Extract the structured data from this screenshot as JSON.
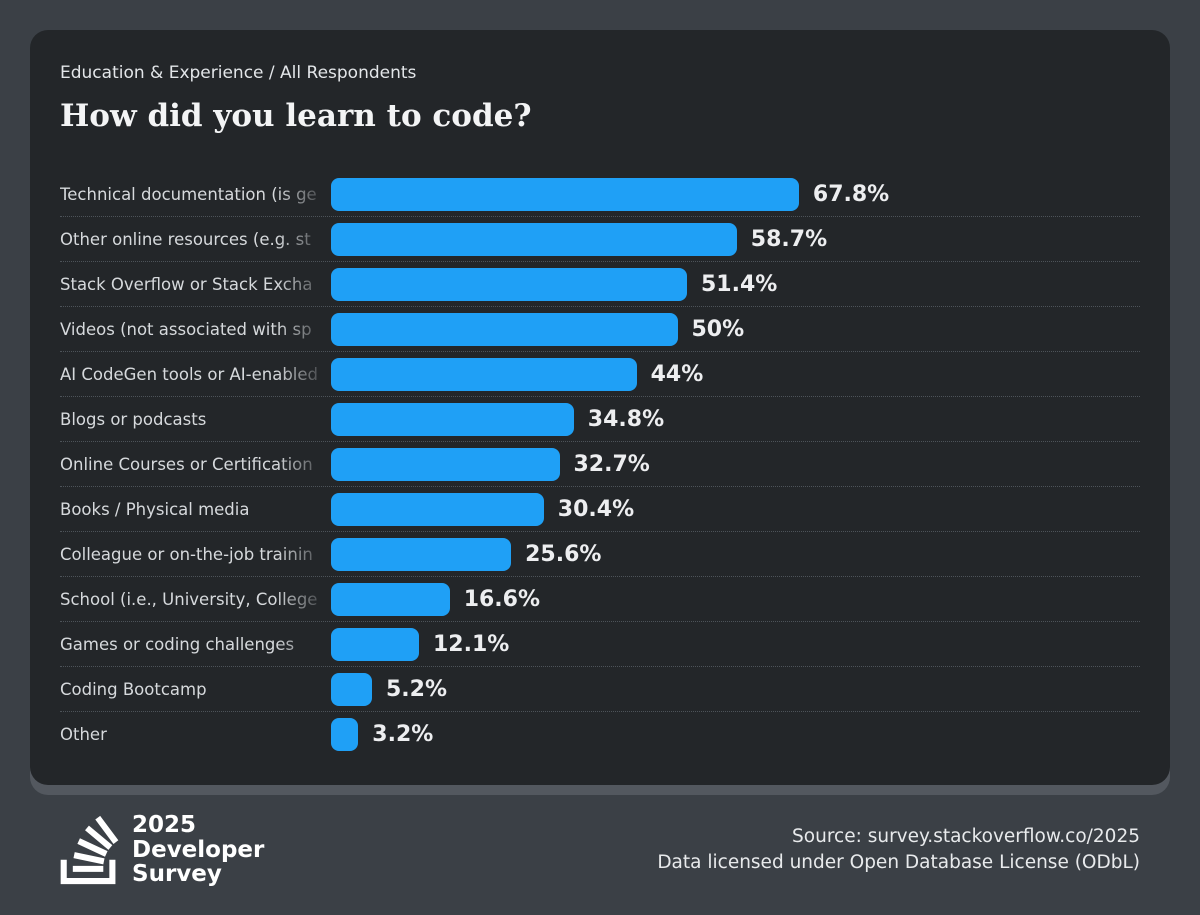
{
  "header": {
    "breadcrumb": "Education & Experience / All Respondents",
    "title": "How did you learn to code?"
  },
  "chart_data": {
    "type": "bar",
    "orientation": "horizontal",
    "title": "How did you learn to code?",
    "unit": "%",
    "xlim": [
      0,
      70
    ],
    "grid": "dotted row separators",
    "legend": "none",
    "bar_color": "#1fa0f6",
    "categories": [
      "Technical documentation (is ge",
      "Other online resources (e.g. st",
      "Stack Overflow or Stack Excha",
      "Videos (not associated with sp",
      "AI CodeGen tools or AI-enabled",
      "Blogs or podcasts",
      "Online Courses or Certification",
      "Books / Physical media",
      "Colleague or on-the-job trainin",
      "School (i.e., University, College",
      "Games or coding challenges",
      "Coding Bootcamp",
      "Other"
    ],
    "values": [
      67.8,
      58.7,
      51.4,
      50,
      44,
      34.8,
      32.7,
      30.4,
      25.6,
      16.6,
      12.1,
      5.2,
      3.2
    ],
    "value_labels": [
      "67.8%",
      "58.7%",
      "51.4%",
      "50%",
      "44%",
      "34.8%",
      "32.7%",
      "30.4%",
      "25.6%",
      "16.6%",
      "12.1%",
      "5.2%",
      "3.2%"
    ]
  },
  "footer": {
    "logo_lines": [
      "2025",
      "Developer",
      "Survey"
    ],
    "source_line1": "Source: survey.stackoverflow.co/2025",
    "source_line2": "Data licensed under Open Database License (ODbL)"
  },
  "colors": {
    "background": "#3b4046",
    "card": "#232629",
    "card_shadow": "#53585f",
    "bar": "#1fa0f6",
    "label_text": "#d6d9dc",
    "value_text": "#edeef0",
    "separator": "#4d5359",
    "footer_text": "#e8eaec"
  }
}
